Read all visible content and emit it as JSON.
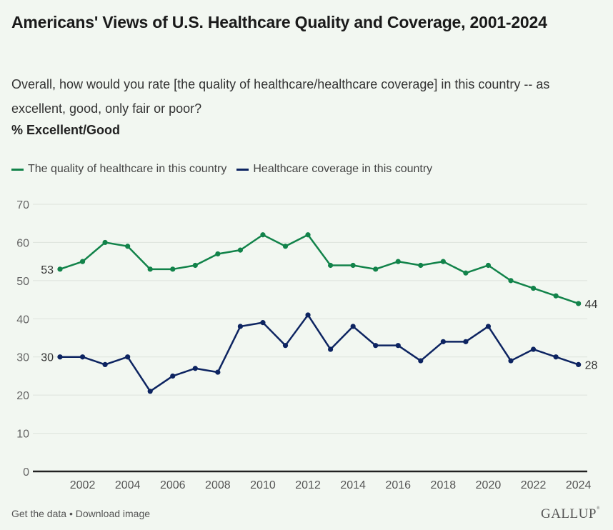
{
  "header": {
    "title": "Americans' Views of U.S. Healthcare Quality and Coverage, 2001-2024",
    "subtitle": "Overall, how would you rate [the quality of healthcare/healthcare coverage] in this country -- as excellent, good, only fair or poor?",
    "measure": "% Excellent/Good"
  },
  "legend": [
    {
      "label": "The quality of healthcare in this country",
      "color": "#12834a"
    },
    {
      "label": "Healthcare coverage in this country",
      "color": "#0d2461"
    }
  ],
  "footer": {
    "get_data": "Get the data",
    "separator": "•",
    "download": "Download image",
    "logo": "GALLUP"
  },
  "chart_data": {
    "type": "line",
    "title": "Americans' Views of U.S. Healthcare Quality and Coverage, 2001-2024",
    "xlabel": "",
    "ylabel": "% Excellent/Good",
    "x": [
      2001,
      2002,
      2003,
      2004,
      2005,
      2006,
      2007,
      2008,
      2009,
      2010,
      2011,
      2012,
      2013,
      2014,
      2015,
      2016,
      2017,
      2018,
      2019,
      2020,
      2021,
      2022,
      2023,
      2024
    ],
    "xticks": [
      2002,
      2004,
      2006,
      2008,
      2010,
      2012,
      2014,
      2016,
      2018,
      2020,
      2022,
      2024
    ],
    "yticks": [
      0,
      10,
      20,
      30,
      40,
      50,
      60,
      70
    ],
    "ylim": [
      0,
      70
    ],
    "grid": true,
    "legend_position": "top-left",
    "series": [
      {
        "name": "The quality of healthcare in this country",
        "color": "#12834a",
        "values": [
          53,
          55,
          60,
          59,
          53,
          53,
          54,
          57,
          58,
          62,
          59,
          62,
          54,
          54,
          53,
          55,
          54,
          55,
          52,
          54,
          50,
          48,
          46,
          44
        ],
        "labels": {
          "first": "53",
          "last": "44"
        }
      },
      {
        "name": "Healthcare coverage in this country",
        "color": "#0d2461",
        "values": [
          30,
          30,
          28,
          30,
          21,
          25,
          27,
          26,
          38,
          39,
          33,
          41,
          32,
          38,
          33,
          33,
          29,
          34,
          34,
          38,
          29,
          32,
          30,
          28
        ],
        "labels": {
          "first": "30",
          "last": "28"
        }
      }
    ]
  }
}
